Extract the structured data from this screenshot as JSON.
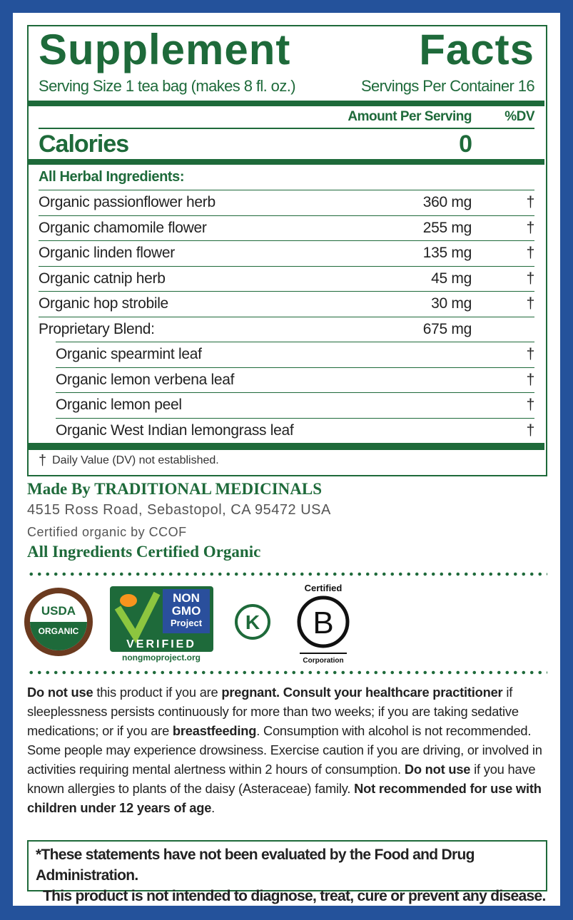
{
  "facts": {
    "title": "Supplement Facts",
    "serving_size": "Serving Size 1 tea bag (makes 8 fl. oz.)",
    "servings_per_container": "Servings Per Container 16",
    "amount_header": "Amount Per Serving",
    "dv_header": "%DV",
    "calories_label": "Calories",
    "calories": "0",
    "section": "All Herbal Ingredients:",
    "rows": [
      [
        "Organic passionflower herb",
        "360 mg",
        "†"
      ],
      [
        "Organic chamomile flower",
        "255 mg",
        "†"
      ],
      [
        "Organic linden flower",
        "135 mg",
        "†"
      ],
      [
        "Organic catnip herb",
        "45 mg",
        "†"
      ],
      [
        "Organic hop strobile",
        "30 mg",
        "†"
      ]
    ],
    "blend": {
      "name": "Proprietary Blend:",
      "amount": "675 mg",
      "items": [
        [
          "Organic spearmint leaf",
          "†"
        ],
        [
          "Organic lemon verbena leaf",
          "†"
        ],
        [
          "Organic lemon peel",
          "†"
        ],
        [
          "Organic West Indian lemongrass leaf",
          "†"
        ]
      ]
    },
    "footnote_mark": "†",
    "footnote": "Daily Value (DV) not established."
  },
  "maker": {
    "made_by": "Made By TRADITIONAL MEDICINALS",
    "address": "4515 Ross Road, Sebastopol, CA 95472 USA",
    "certified": "Certified organic by CCOF",
    "all_organic": "All Ingredients Certified Organic"
  },
  "logos": {
    "usda": [
      "USDA",
      "ORGANIC"
    ],
    "nongmo": [
      "NON",
      "GMO",
      "Project",
      "VERIFIED",
      "nongmoproject.org"
    ],
    "kosher": "K",
    "bcorp": [
      "Certified",
      "B",
      "Corporation"
    ]
  },
  "warning": [
    {
      "text": "Do not use",
      "bold": true
    },
    {
      "text": " this product if you are ",
      "bold": false
    },
    {
      "text": "pregnant. Consult your healthcare practitioner",
      "bold": true
    },
    {
      "text": " if sleeplessness persists continuously for more than two weeks; if you are taking sedative medications; or if you are ",
      "bold": false
    },
    {
      "text": "breastfeeding",
      "bold": true
    },
    {
      "text": ". Consumption with alcohol is not recommended. Some people may experience drowsiness. Exercise caution if you are driving, or involved in activities requiring mental alertness within 2 hours of consumption. ",
      "bold": false
    },
    {
      "text": "Do not use",
      "bold": true
    },
    {
      "text": " if you have known allergies to plants of the daisy (Asteraceae) family. ",
      "bold": false
    },
    {
      "text": "Not recommended for use with children under 12 years of age",
      "bold": true
    },
    {
      "text": ".",
      "bold": false
    }
  ],
  "disclaimer": [
    "*These statements have not been evaluated by the Food and Drug Administration.",
    "This product is not intended to diagnose, treat, cure or prevent any disease."
  ]
}
